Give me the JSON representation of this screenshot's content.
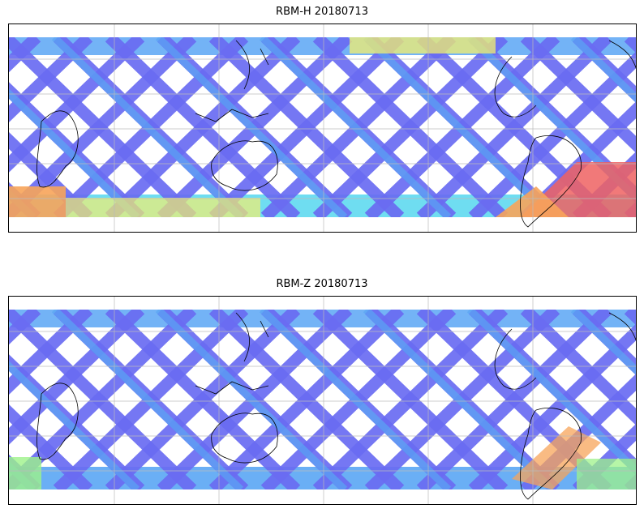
{
  "panels": [
    {
      "title": "RBM-H 20180713"
    },
    {
      "title": "RBM-Z 20180713"
    }
  ],
  "colors": {
    "swath_low": "#6a6cf2",
    "swath_mid_blue": "#5aa6f4",
    "swath_cyan": "#5fd9f0",
    "swath_green": "#9df28a",
    "swath_yellow": "#f3ef6e",
    "swath_orange": "#f7a45a",
    "swath_red": "#ee6262",
    "coastline": "#000000",
    "gridline": "#bbbbbb"
  }
}
